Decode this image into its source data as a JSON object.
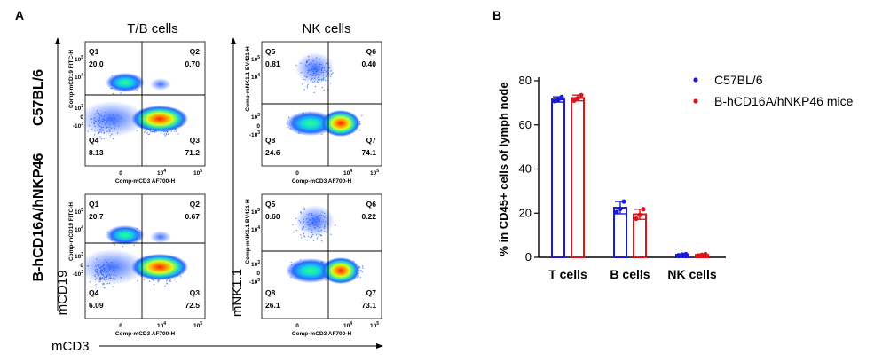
{
  "panel_a": {
    "letter": "A",
    "col_titles": [
      "T/B cells",
      "NK cells"
    ],
    "row_labels": [
      "C57BL/6",
      "B-hCD16A/hNKP46"
    ],
    "x_axis_label": "mCD3",
    "y_axis_labels": [
      "mCD19",
      "mNK1.1"
    ],
    "plots": [
      {
        "row": 0,
        "col": 0,
        "xlabel": "Comp-mCD3 AF700-H",
        "ylabel": "Comp-mCD19 FITC-H",
        "quadrants": [
          {
            "name": "Q1",
            "value": "20.0"
          },
          {
            "name": "Q2",
            "value": "0.70"
          },
          {
            "name": "Q4",
            "value": "8.13"
          },
          {
            "name": "Q3",
            "value": "71.2"
          }
        ]
      },
      {
        "row": 0,
        "col": 1,
        "xlabel": "Comp-mCD3 AF700-H",
        "ylabel": "Comp-mNK1.1 BV421-H",
        "quadrants": [
          {
            "name": "Q5",
            "value": "0.81"
          },
          {
            "name": "Q6",
            "value": "0.40"
          },
          {
            "name": "Q8",
            "value": "24.6"
          },
          {
            "name": "Q7",
            "value": "74.1"
          }
        ]
      },
      {
        "row": 1,
        "col": 0,
        "xlabel": "Comp-mCD3 AF700-H",
        "ylabel": "Comp-mCD19 FITC-H",
        "quadrants": [
          {
            "name": "Q1",
            "value": "20.7"
          },
          {
            "name": "Q2",
            "value": "0.67"
          },
          {
            "name": "Q4",
            "value": "6.09"
          },
          {
            "name": "Q3",
            "value": "72.5"
          }
        ]
      },
      {
        "row": 1,
        "col": 1,
        "xlabel": "Comp-mCD3 AF700-H",
        "ylabel": "Comp-mNK1.1 BV421-H",
        "quadrants": [
          {
            "name": "Q5",
            "value": "0.60"
          },
          {
            "name": "Q6",
            "value": "0.22"
          },
          {
            "name": "Q8",
            "value": "26.1"
          },
          {
            "name": "Q7",
            "value": "73.1"
          }
        ]
      }
    ],
    "tick_labels": {
      "y_T": [
        "10^5",
        "10^4",
        "10^3",
        "0",
        "-10^3"
      ],
      "x": [
        "0",
        "10^4",
        "10^5"
      ]
    }
  },
  "chart_data": {
    "type": "bar",
    "panel_letter": "B",
    "categories": [
      "T cells",
      "B cells",
      "NK cells"
    ],
    "ylabel": "% in CD45+ cells of lymph node",
    "xlabel": "",
    "ylim": [
      0,
      80
    ],
    "yticks": [
      "0",
      "20",
      "40",
      "60",
      "80"
    ],
    "legend_position": "top-right",
    "series": [
      {
        "name": "C57BL/6",
        "color": "#1a1adb",
        "values": [
          71.5,
          22.5,
          1.2
        ],
        "errors": [
          1.2,
          2.8,
          0.3
        ],
        "points": [
          [
            70.8,
            71.3,
            72.6
          ],
          [
            20.5,
            22.0,
            25.3
          ],
          [
            0.9,
            1.2,
            1.4
          ]
        ]
      },
      {
        "name": "B-hCD16A/hNKP46 mice",
        "color": "#e0121a",
        "values": [
          72.2,
          19.5,
          1.1
        ],
        "errors": [
          1.3,
          2.3,
          0.3
        ],
        "points": [
          [
            71.0,
            72.0,
            73.5
          ],
          [
            17.5,
            19.2,
            21.8
          ],
          [
            0.8,
            1.1,
            1.4
          ]
        ]
      }
    ]
  }
}
